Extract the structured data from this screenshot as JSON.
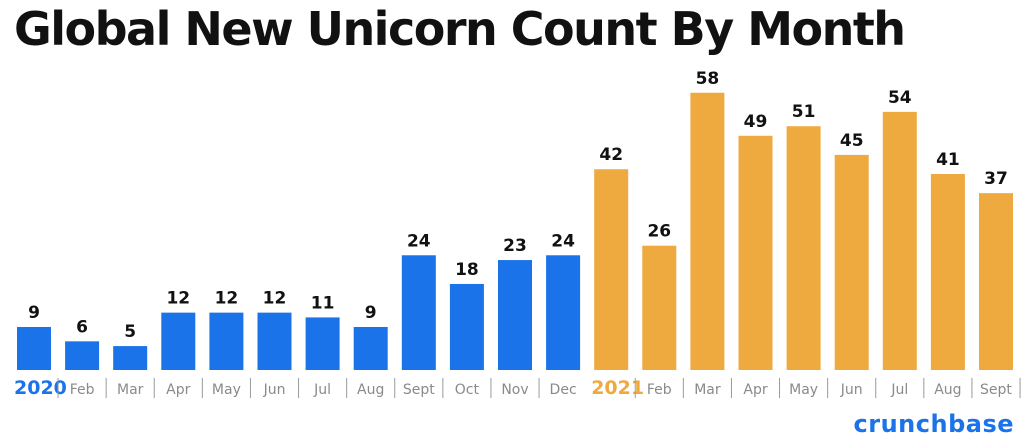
{
  "title": "Global New Unicorn Count By Month",
  "logo": "crunchbase",
  "colors": {
    "series_2020": "#1a73e8",
    "series_2021": "#eea93f"
  },
  "chart_data": {
    "type": "bar",
    "title": "Global New Unicorn Count By Month",
    "categories": [
      "2020",
      "Feb",
      "Mar",
      "Apr",
      "May",
      "Jun",
      "Jul",
      "Aug",
      "Sept",
      "Oct",
      "Nov",
      "Dec",
      "2021",
      "Feb",
      "Mar",
      "Apr",
      "May",
      "Jun",
      "Jul",
      "Aug",
      "Sept"
    ],
    "values": [
      9,
      6,
      5,
      12,
      12,
      12,
      11,
      9,
      24,
      18,
      23,
      24,
      42,
      26,
      58,
      49,
      51,
      45,
      54,
      41,
      37
    ],
    "series_groups": [
      {
        "label": "2020",
        "start": 0,
        "end": 11,
        "color": "#1a73e8"
      },
      {
        "label": "2021",
        "start": 12,
        "end": 20,
        "color": "#eea93f"
      }
    ],
    "xlabel": "",
    "ylabel": "",
    "grid": false,
    "data_labels": true
  }
}
